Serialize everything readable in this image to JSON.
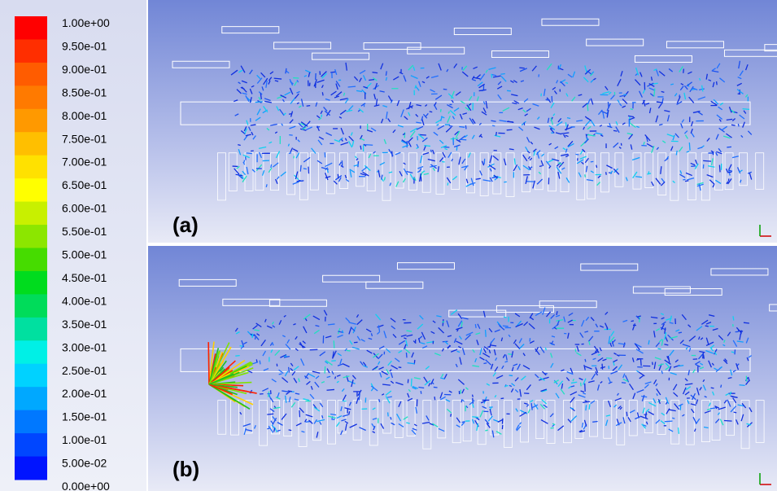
{
  "colorbar": {
    "labels": [
      "1.00e+00",
      "9.50e-01",
      "9.00e-01",
      "8.50e-01",
      "8.00e-01",
      "7.50e-01",
      "7.00e-01",
      "6.50e-01",
      "6.00e-01",
      "5.50e-01",
      "5.00e-01",
      "4.50e-01",
      "4.00e-01",
      "3.50e-01",
      "3.00e-01",
      "2.50e-01",
      "2.00e-01",
      "1.50e-01",
      "1.00e-01",
      "5.00e-02",
      "0.00e+00"
    ],
    "colors": [
      "#ff0000",
      "#ff2e00",
      "#ff5c00",
      "#ff7a00",
      "#ff9900",
      "#ffbf00",
      "#ffe100",
      "#ffff00",
      "#c8f000",
      "#8ce600",
      "#46dc00",
      "#00dc1e",
      "#00dc5a",
      "#00e0a0",
      "#00f0e6",
      "#00d2ff",
      "#00a8ff",
      "#0078ff",
      "#0046ff",
      "#0014ff"
    ]
  },
  "panels": [
    {
      "label": "(a)",
      "axis": "z"
    },
    {
      "label": "(b)",
      "axis": "x"
    }
  ]
}
